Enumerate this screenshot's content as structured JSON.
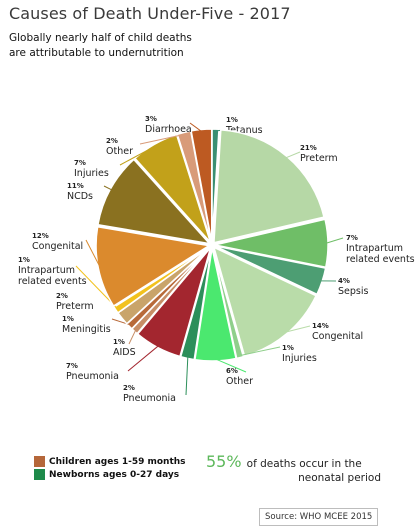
{
  "header": {
    "title": "Causes of Death Under-Five - 2017",
    "subtitle_line1": "Globally nearly half of child deaths",
    "subtitle_line2": "are attributable to undernutrition"
  },
  "colors": {
    "children": "#b5673a",
    "newborns": "#1e8a4a"
  },
  "chart_data": {
    "type": "pie",
    "start_angle_deg": 0,
    "slices": [
      {
        "pct_label": "1%",
        "name": "Tetanus",
        "value": 1,
        "color": "#3a8f72",
        "group": "newborns"
      },
      {
        "pct_label": "21%",
        "name": "Preterm",
        "value": 21,
        "color": "#b6d8a6",
        "group": "newborns"
      },
      {
        "pct_label": "7%",
        "name": "Intrapartum related events",
        "value": 7,
        "color": "#6fbe67",
        "group": "newborns"
      },
      {
        "pct_label": "4%",
        "name": "Sepsis",
        "value": 4,
        "color": "#4d9e73",
        "group": "newborns"
      },
      {
        "pct_label": "14%",
        "name": "Congenital",
        "value": 14,
        "color": "#b9dca9",
        "group": "newborns"
      },
      {
        "pct_label": "1%",
        "name": "Injuries",
        "value": 1,
        "color": "#8fcf8b",
        "group": "newborns"
      },
      {
        "pct_label": "6%",
        "name": "Other",
        "value": 6,
        "color": "#4be86f",
        "group": "newborns"
      },
      {
        "pct_label": "2%",
        "name": "Pneumonia",
        "value": 2,
        "color": "#2c8f5a",
        "group": "newborns"
      },
      {
        "pct_label": "7%",
        "name": "Pneumonia",
        "value": 7,
        "color": "#a3262f",
        "group": "children"
      },
      {
        "pct_label": "1%",
        "name": "AIDS",
        "value": 1,
        "color": "#c78e67",
        "group": "children"
      },
      {
        "pct_label": "1%",
        "name": "Meningitis",
        "value": 1,
        "color": "#b86a3a",
        "group": "children"
      },
      {
        "pct_label": "2%",
        "name": "Preterm",
        "value": 2,
        "color": "#c9a46a",
        "group": "children"
      },
      {
        "pct_label": "1%",
        "name": "Intrapartum related events",
        "value": 1,
        "color": "#f2c21d",
        "group": "children"
      },
      {
        "pct_label": "12%",
        "name": "Congenital",
        "value": 12,
        "color": "#db8a2d",
        "group": "children"
      },
      {
        "pct_label": "11%",
        "name": "NCDs",
        "value": 11,
        "color": "#8a7120",
        "group": "children"
      },
      {
        "pct_label": "7%",
        "name": "Injuries",
        "value": 7,
        "color": "#c2a11a",
        "group": "children"
      },
      {
        "pct_label": "2%",
        "name": "Other",
        "value": 2,
        "color": "#d89b79",
        "group": "children"
      },
      {
        "pct_label": "3%",
        "name": "Diarrhoea",
        "value": 3,
        "color": "#bd5a22",
        "group": "children"
      }
    ]
  },
  "legend": {
    "children_label": "Children ages 1-59 months",
    "newborns_label": "Newborns ages 0-27 days"
  },
  "stat": {
    "percent": "55%",
    "text_line1": "of deaths occur in the",
    "text_line2": "neonatal period"
  },
  "source": "Source: WHO MCEE 2015"
}
